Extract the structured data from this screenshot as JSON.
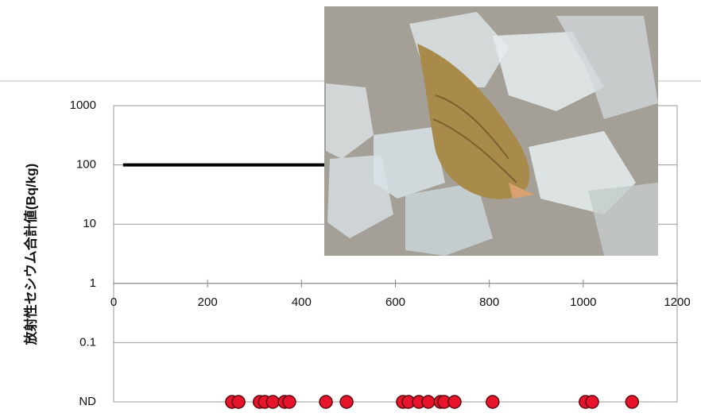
{
  "chart_data": {
    "type": "scatter",
    "ylabel": "放射性セシウム合計値(Bq/kg)",
    "log_y": true,
    "xlim": [
      0,
      1200
    ],
    "xticks": [
      0,
      200,
      400,
      600,
      800,
      1000,
      1200
    ],
    "ylim": [
      0.01,
      1000
    ],
    "yticks": [
      1000,
      100,
      10,
      1,
      0.1,
      {
        "value": 0.01,
        "label": "ND"
      }
    ],
    "x_axis_at": 1,
    "grid": true,
    "series": [
      {
        "style": "line",
        "color": "#000000",
        "x": [
          20,
          450
        ],
        "values": [
          100,
          100
        ]
      },
      {
        "style": "points",
        "color": "#e8142c",
        "x": [
          252,
          266,
          311,
          322,
          339,
          364,
          374,
          452,
          496,
          616,
          628,
          650,
          670,
          696,
          704,
          726,
          807,
          1005,
          1019,
          1104
        ],
        "values": [
          0.01,
          0.01,
          0.01,
          0.01,
          0.01,
          0.01,
          0.01,
          0.01,
          0.01,
          0.01,
          0.01,
          0.01,
          0.01,
          0.01,
          0.01,
          0.01,
          0.01,
          0.01,
          0.01,
          0.01
        ]
      }
    ]
  }
}
